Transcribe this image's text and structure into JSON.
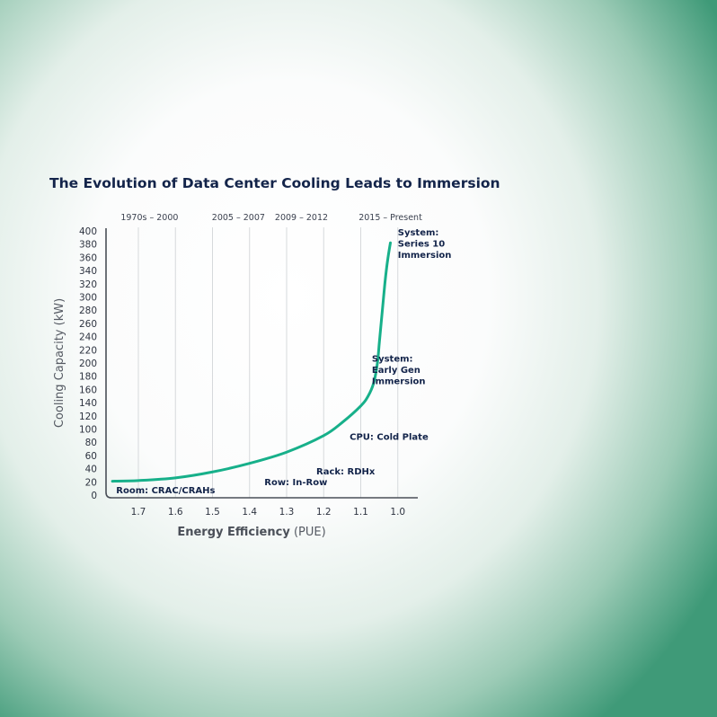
{
  "chart_data": {
    "type": "line",
    "title": "The Evolution of Data Center Cooling Leads to Immersion",
    "xlabel_bold": "Energy Efficiency",
    "xlabel_unit": "(PUE)",
    "ylabel": "Cooling Capacity (kW)",
    "x_reversed": true,
    "xlim": [
      1.78,
      0.94
    ],
    "ylim": [
      0,
      400
    ],
    "x_ticks": [
      "1.7",
      "1.6",
      "1.5",
      "1.4",
      "1.3",
      "1.2",
      "1.1",
      "1.0"
    ],
    "y_ticks": [
      "0",
      "20",
      "40",
      "60",
      "80",
      "100",
      "120",
      "140",
      "160",
      "180",
      "200",
      "220",
      "240",
      "260",
      "280",
      "300",
      "320",
      "340",
      "360",
      "380",
      "400"
    ],
    "grid": "vertical",
    "line_color": "#17b08a",
    "eras": [
      {
        "label": "1970s – 2000",
        "x": 1.67
      },
      {
        "label": "2005 – 2007",
        "x": 1.43
      },
      {
        "label": "2009 – 2012",
        "x": 1.26
      },
      {
        "label": "2015 – Present",
        "x": 1.02
      }
    ],
    "series": [
      {
        "x": [
          1.77,
          1.7,
          1.6,
          1.5,
          1.4,
          1.3,
          1.2,
          1.15,
          1.1,
          1.08,
          1.065,
          1.055,
          1.05,
          1.045,
          1.04,
          1.035,
          1.03,
          1.025,
          1.02
        ],
        "y": [
          21,
          22,
          26,
          35,
          48,
          65,
          90,
          110,
          135,
          150,
          170,
          200,
          230,
          260,
          290,
          320,
          345,
          365,
          382
        ]
      }
    ],
    "annotations": [
      {
        "lines": [
          "Room: CRAC/CRAHs"
        ],
        "x": 1.76,
        "y": 3
      },
      {
        "lines": [
          "Row: In-Row"
        ],
        "x": 1.36,
        "y": 15
      },
      {
        "lines": [
          "Rack: RDHx"
        ],
        "x": 1.22,
        "y": 31
      },
      {
        "lines": [
          "CPU: Cold Plate"
        ],
        "x": 1.13,
        "y": 84
      },
      {
        "lines": [
          "System:",
          "Early Gen",
          "Immersion"
        ],
        "x": 1.07,
        "y": 202
      },
      {
        "lines": [
          "System:",
          "Series 10",
          "Immersion"
        ],
        "x": 1.0,
        "y": 393
      }
    ]
  }
}
